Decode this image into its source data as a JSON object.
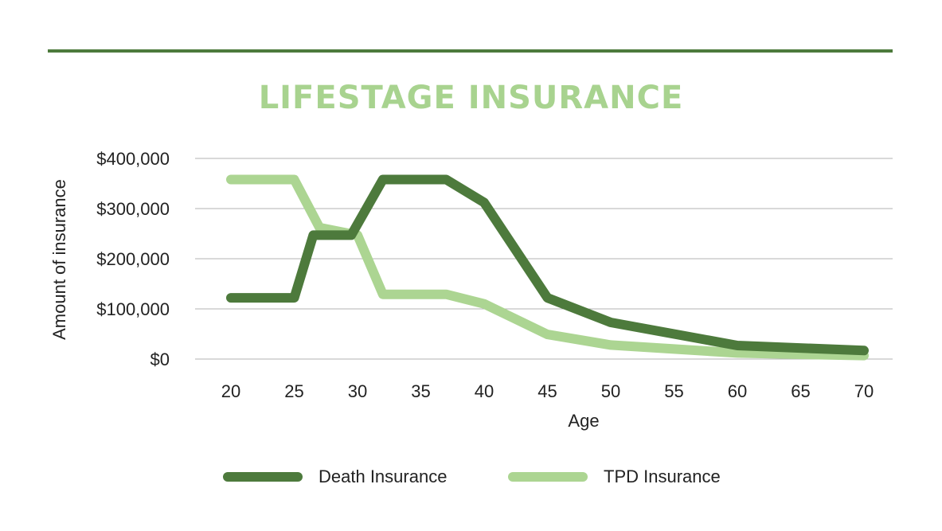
{
  "colors": {
    "rule": "#4d7a3c",
    "title": "#a8d38f",
    "grid": "#b3b3b3",
    "death": "#4d7a3c",
    "tpd": "#acd592"
  },
  "chart_data": {
    "type": "line",
    "title": "LIFESTAGE INSURANCE",
    "xlabel": "Age",
    "ylabel": "Amount of insurance",
    "x_ticks": [
      "20",
      "25",
      "30",
      "35",
      "40",
      "45",
      "50",
      "55",
      "60",
      "65",
      "70"
    ],
    "y_ticks": [
      "$0",
      "$100,000",
      "$200,000",
      "$300,000",
      "$400,000"
    ],
    "xlim": [
      20,
      70
    ],
    "ylim": [
      0,
      400000
    ],
    "grid": true,
    "legend_position": "bottom",
    "series": [
      {
        "name": "Death Insurance",
        "color": "#4d7a3c",
        "points": [
          [
            20,
            122000
          ],
          [
            25,
            122000
          ],
          [
            26.5,
            247000
          ],
          [
            29.5,
            247000
          ],
          [
            32,
            358000
          ],
          [
            37,
            358000
          ],
          [
            40,
            312000
          ],
          [
            45,
            122000
          ],
          [
            50,
            73000
          ],
          [
            55,
            50000
          ],
          [
            60,
            27000
          ],
          [
            70,
            17000
          ]
        ]
      },
      {
        "name": "TPD Insurance",
        "color": "#acd592",
        "points": [
          [
            20,
            358000
          ],
          [
            25,
            358000
          ],
          [
            27,
            262000
          ],
          [
            30,
            247000
          ],
          [
            32,
            129000
          ],
          [
            37,
            129000
          ],
          [
            40,
            110000
          ],
          [
            45,
            49000
          ],
          [
            50,
            28000
          ],
          [
            55,
            20000
          ],
          [
            60,
            12000
          ],
          [
            70,
            7000
          ]
        ]
      }
    ]
  }
}
